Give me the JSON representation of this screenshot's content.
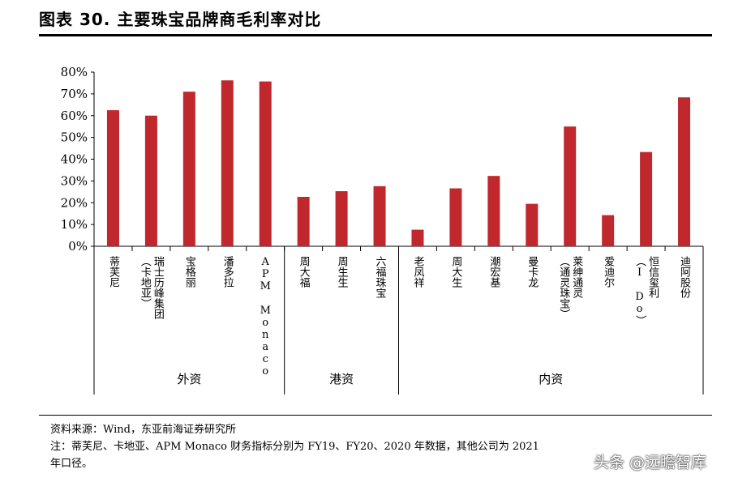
{
  "title": "图表 30. 主要珠宝品牌商毛利率对比",
  "chart_data": {
    "type": "bar",
    "unit": "%",
    "ylim": [
      0,
      80
    ],
    "yticks": [
      0,
      10,
      20,
      30,
      40,
      50,
      60,
      70,
      80
    ],
    "ytick_labels": [
      "0%",
      "10%",
      "20%",
      "30%",
      "40%",
      "50%",
      "60%",
      "70%",
      "80%"
    ],
    "bar_color": "#c0282e",
    "categories": [
      {
        "label": "蒂芙尼",
        "value": 62.5
      },
      {
        "label": "瑞士历峰集团(卡地亚)",
        "lines": [
          "瑞士历峰集团",
          "（卡地亚）"
        ],
        "value": 60
      },
      {
        "label": "宝格丽",
        "value": 71
      },
      {
        "label": "潘多拉",
        "value": 76.2
      },
      {
        "label": "APM Monaco",
        "value": 75.7
      },
      {
        "label": "周大福",
        "value": 22.7
      },
      {
        "label": "周生生",
        "value": 25.3
      },
      {
        "label": "六福珠宝",
        "value": 27.6
      },
      {
        "label": "老凤祥",
        "value": 7.6
      },
      {
        "label": "周大生",
        "value": 26.6
      },
      {
        "label": "潮宏基",
        "value": 32.3
      },
      {
        "label": "曼卡龙",
        "value": 19.5
      },
      {
        "label": "莱绅通灵(通灵珠宝)",
        "lines": [
          "莱绅通灵",
          "（通灵珠宝）"
        ],
        "value": 55
      },
      {
        "label": "爱迪尔",
        "value": 14.3
      },
      {
        "label": "恒信玺利(I Do)",
        "lines": [
          "恒信玺利",
          "（I Do）"
        ],
        "value": 43.3
      },
      {
        "label": "迪阿股份",
        "value": 68.4
      }
    ],
    "groups": [
      {
        "label": "外资",
        "start": 0,
        "end": 4
      },
      {
        "label": "港资",
        "start": 5,
        "end": 7
      },
      {
        "label": "内资",
        "start": 8,
        "end": 15
      }
    ],
    "grid": false,
    "legend": "none"
  },
  "footer": {
    "source": "资料来源：Wind，东亚前海证券研究所",
    "note_line1": "注：蒂芙尼、卡地亚、APM Monaco 财务指标分别为 FY19、FY20、2020 年数据，其他公司为 2021",
    "note_line2": "年口径。"
  },
  "watermark": "头条 @远瞻智库"
}
